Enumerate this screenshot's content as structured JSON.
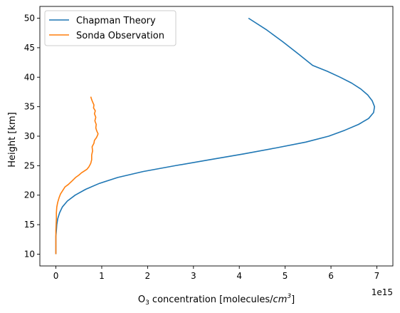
{
  "chart_data": {
    "type": "line",
    "xlabel": "O₃ concentration [molecules/cm³]",
    "xlabel_parts": {
      "base": "O",
      "sub": "3",
      "mid": " concentration [molecules/",
      "unit": "cm",
      "sup": "3",
      "end": "]"
    },
    "ylabel": "Height [km]",
    "x_offset_label": "1e15",
    "x_scale": 1000000000000000.0,
    "xlim": [
      -0.35,
      7.35
    ],
    "ylim": [
      8.0,
      52.0
    ],
    "xticks": [
      0,
      1,
      2,
      3,
      4,
      5,
      6,
      7
    ],
    "yticks": [
      10,
      15,
      20,
      25,
      30,
      35,
      40,
      45,
      50
    ],
    "grid": false,
    "legend_position": "upper left",
    "series": [
      {
        "name": "Chapman Theory",
        "color": "#1f77b4",
        "x": [
          0.0,
          0.0,
          0.01,
          0.02,
          0.04,
          0.08,
          0.14,
          0.25,
          0.42,
          0.65,
          0.95,
          1.35,
          1.9,
          2.6,
          3.35,
          4.1,
          4.8,
          5.45,
          5.95,
          6.3,
          6.6,
          6.82,
          6.93,
          6.95,
          6.9,
          6.8,
          6.65,
          6.45,
          6.2,
          5.92,
          5.6,
          5.28,
          4.95,
          4.6,
          4.2
        ],
        "y": [
          10,
          13,
          14,
          15,
          16,
          17,
          18,
          19,
          20,
          21,
          22,
          23,
          24,
          25,
          26,
          27,
          28,
          29,
          30,
          31,
          32,
          33,
          34,
          35,
          36,
          37,
          38,
          39,
          40,
          41,
          42,
          44,
          46,
          48,
          50
        ]
      },
      {
        "name": "Sonda Observation",
        "color": "#ff7f0e",
        "x": [
          0.0,
          0.0,
          0.0,
          0.01,
          0.01,
          0.02,
          0.04,
          0.07,
          0.1,
          0.15,
          0.2,
          0.27,
          0.35,
          0.43,
          0.5,
          0.56,
          0.62,
          0.68,
          0.72,
          0.76,
          0.78,
          0.78,
          0.8,
          0.79,
          0.83,
          0.84,
          0.88,
          0.9,
          0.92,
          0.89,
          0.87,
          0.88,
          0.85,
          0.87,
          0.84,
          0.86,
          0.82,
          0.83,
          0.8,
          0.78,
          0.76
        ],
        "y": [
          10.0,
          12.0,
          14.0,
          16.0,
          17.0,
          18.0,
          18.8,
          19.6,
          20.2,
          20.8,
          21.4,
          21.8,
          22.4,
          23.0,
          23.4,
          23.8,
          24.1,
          24.4,
          24.8,
          25.4,
          26.0,
          26.8,
          27.5,
          28.2,
          28.8,
          29.3,
          29.7,
          30.0,
          30.4,
          30.9,
          31.4,
          32.0,
          32.6,
          33.2,
          33.8,
          34.3,
          34.8,
          35.3,
          35.8,
          36.2,
          36.7
        ]
      }
    ]
  }
}
